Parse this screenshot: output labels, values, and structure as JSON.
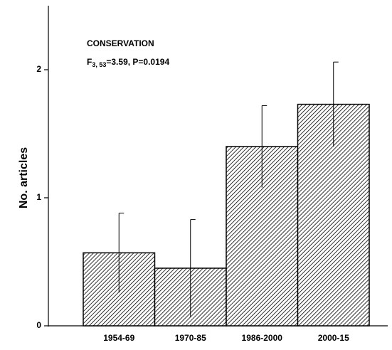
{
  "chart_data": {
    "type": "bar",
    "title": "CONSERVATION",
    "annotation": {
      "main": "F",
      "subscript": "3, 53",
      "rest": "=3.59, P=0.0194"
    },
    "y_label": "No. articles",
    "categories": [
      "1954-69",
      "1970-85",
      "1986-2000",
      "2000-15"
    ],
    "values": [
      0.57,
      0.45,
      1.4,
      1.73
    ],
    "errors": [
      0.31,
      0.38,
      0.32,
      0.33
    ],
    "color": "#000000",
    "ylim": [
      0,
      2.5
    ],
    "yticks": [
      0,
      1,
      2
    ],
    "grid": false
  }
}
